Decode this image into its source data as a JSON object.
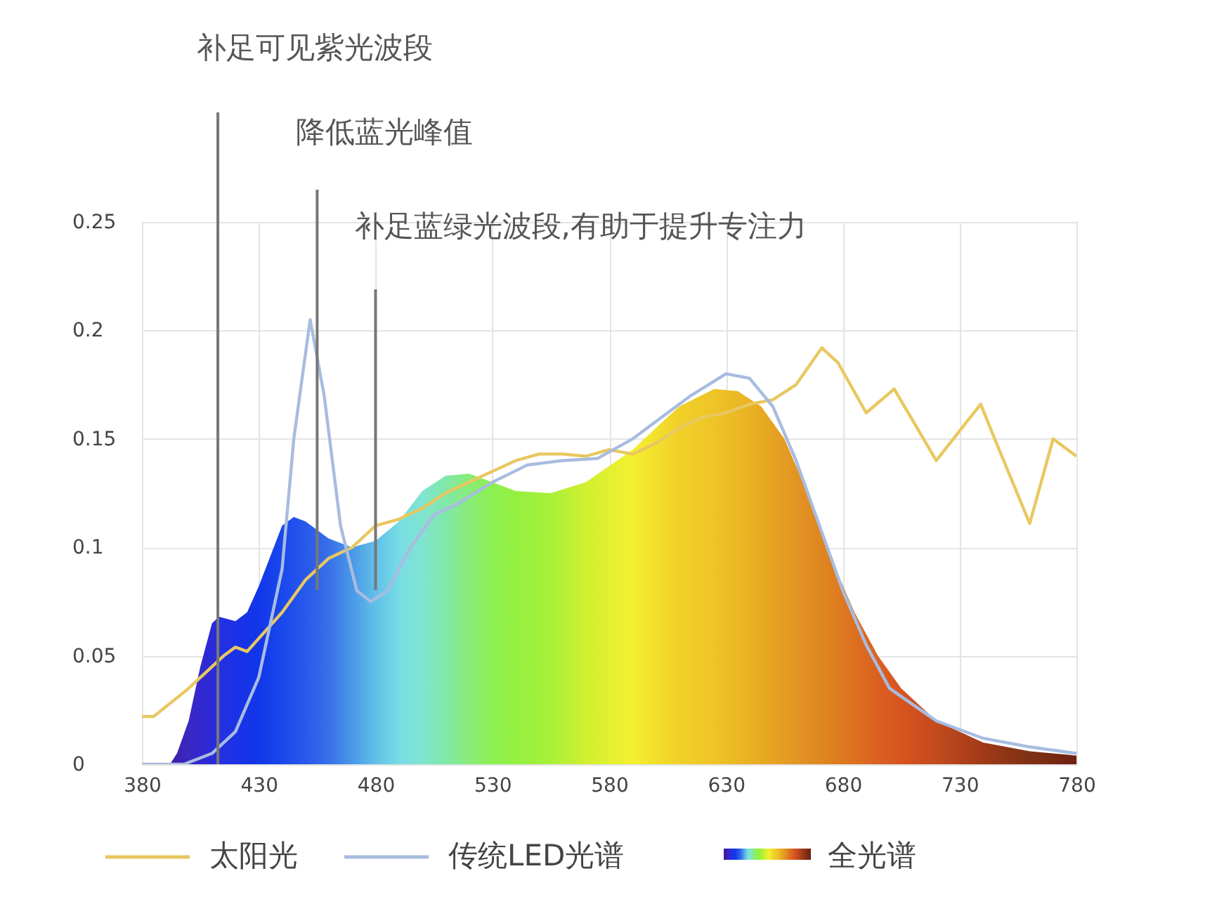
{
  "chart_data": {
    "type": "line",
    "xlim": [
      380,
      780
    ],
    "xticks": [
      380,
      430,
      480,
      530,
      580,
      630,
      680,
      730,
      780
    ],
    "ylim": [
      0,
      0.25
    ],
    "yticks": [
      0,
      0.05,
      0.1,
      0.15,
      0.2,
      0.25
    ],
    "grid": true,
    "legend": "bottom",
    "marker": "none",
    "line_style": "solid",
    "ref_lines": [
      {
        "axis": "x",
        "value": 412.5,
        "label": "补足可见紫光波段",
        "color": "#777777"
      },
      {
        "axis": "x",
        "value": 455,
        "label": "降低蓝光峰值",
        "color": "#777777"
      },
      {
        "axis": "x",
        "value": 480,
        "label": "补足蓝绿光波段,有助于提升专注力",
        "color": "#777777"
      }
    ],
    "series": [
      {
        "name": "全光谱",
        "type": "area",
        "colors": [
          "#3a20a0",
          "#3a20a8",
          "#3c22b0",
          "#3a28c0",
          "#3228d0",
          "#2a2ad8",
          "#2530e0",
          "#1c32e6",
          "#1634e8",
          "#1236ea",
          "#1a48ec",
          "#2050ec",
          "#2858ea",
          "#3870e8",
          "#4a98e8",
          "#60c0e8",
          "#78dce6",
          "#80e4d0",
          "#80e8a8",
          "#88ec78",
          "#8cf050",
          "#94f040",
          "#a8f038",
          "#d0f030",
          "#f4f030",
          "#f2e02c",
          "#f0d028",
          "#eec426",
          "#ecb824",
          "#e8aa22",
          "#e49c22",
          "#e08e22",
          "#de8020",
          "#dc7020",
          "#da6020",
          "#d85420",
          "#c44a1e",
          "#a03a18",
          "#803014",
          "#6e2010"
        ],
        "x": [
          380,
          392,
          395,
          400,
          405,
          410,
          413,
          420,
          425,
          430,
          440,
          445,
          450,
          460,
          470,
          480,
          490,
          500,
          510,
          520,
          530,
          540,
          555,
          570,
          590,
          600,
          610,
          625,
          635,
          645,
          655,
          665,
          675,
          685,
          695,
          705,
          720,
          740,
          760,
          780
        ],
        "values": [
          0,
          0,
          0.005,
          0.02,
          0.045,
          0.065,
          0.068,
          0.066,
          0.07,
          0.082,
          0.11,
          0.114,
          0.112,
          0.104,
          0.1,
          0.103,
          0.112,
          0.126,
          0.133,
          0.134,
          0.13,
          0.126,
          0.125,
          0.13,
          0.145,
          0.155,
          0.165,
          0.173,
          0.172,
          0.165,
          0.15,
          0.125,
          0.095,
          0.07,
          0.05,
          0.035,
          0.02,
          0.01,
          0.006,
          0.004
        ]
      },
      {
        "name": "太阳光",
        "color": "#e8c860",
        "x": [
          380,
          385,
          400,
          415,
          420,
          425,
          430,
          440,
          450,
          460,
          470,
          480,
          490,
          500,
          510,
          520,
          530,
          540,
          550,
          560,
          570,
          580,
          590,
          600,
          610,
          620,
          630,
          640,
          650,
          660,
          671,
          678,
          690,
          702,
          720,
          739,
          745,
          760,
          770,
          780
        ],
        "values": [
          0.022,
          0.022,
          0.035,
          0.05,
          0.054,
          0.052,
          0.058,
          0.07,
          0.085,
          0.095,
          0.1,
          0.11,
          0.113,
          0.118,
          0.125,
          0.13,
          0.135,
          0.14,
          0.143,
          0.143,
          0.142,
          0.145,
          0.143,
          0.148,
          0.155,
          0.16,
          0.162,
          0.166,
          0.168,
          0.175,
          0.192,
          0.185,
          0.162,
          0.173,
          0.14,
          0.166,
          0.15,
          0.111,
          0.15,
          0.142
        ]
      },
      {
        "name": "传统LED光谱",
        "color": "#a8bce0",
        "x": [
          380,
          398,
          410,
          420,
          430,
          440,
          445,
          452,
          458,
          465,
          472,
          478,
          485,
          495,
          505,
          515,
          530,
          545,
          560,
          575,
          590,
          600,
          615,
          630,
          640,
          650,
          660,
          670,
          680,
          690,
          700,
          720,
          740,
          760,
          780
        ],
        "values": [
          0,
          0,
          0.005,
          0.015,
          0.04,
          0.09,
          0.15,
          0.205,
          0.17,
          0.11,
          0.08,
          0.075,
          0.08,
          0.1,
          0.115,
          0.12,
          0.13,
          0.138,
          0.14,
          0.141,
          0.15,
          0.158,
          0.17,
          0.18,
          0.178,
          0.165,
          0.14,
          0.11,
          0.08,
          0.055,
          0.035,
          0.02,
          0.012,
          0.008,
          0.005
        ]
      }
    ]
  }
}
